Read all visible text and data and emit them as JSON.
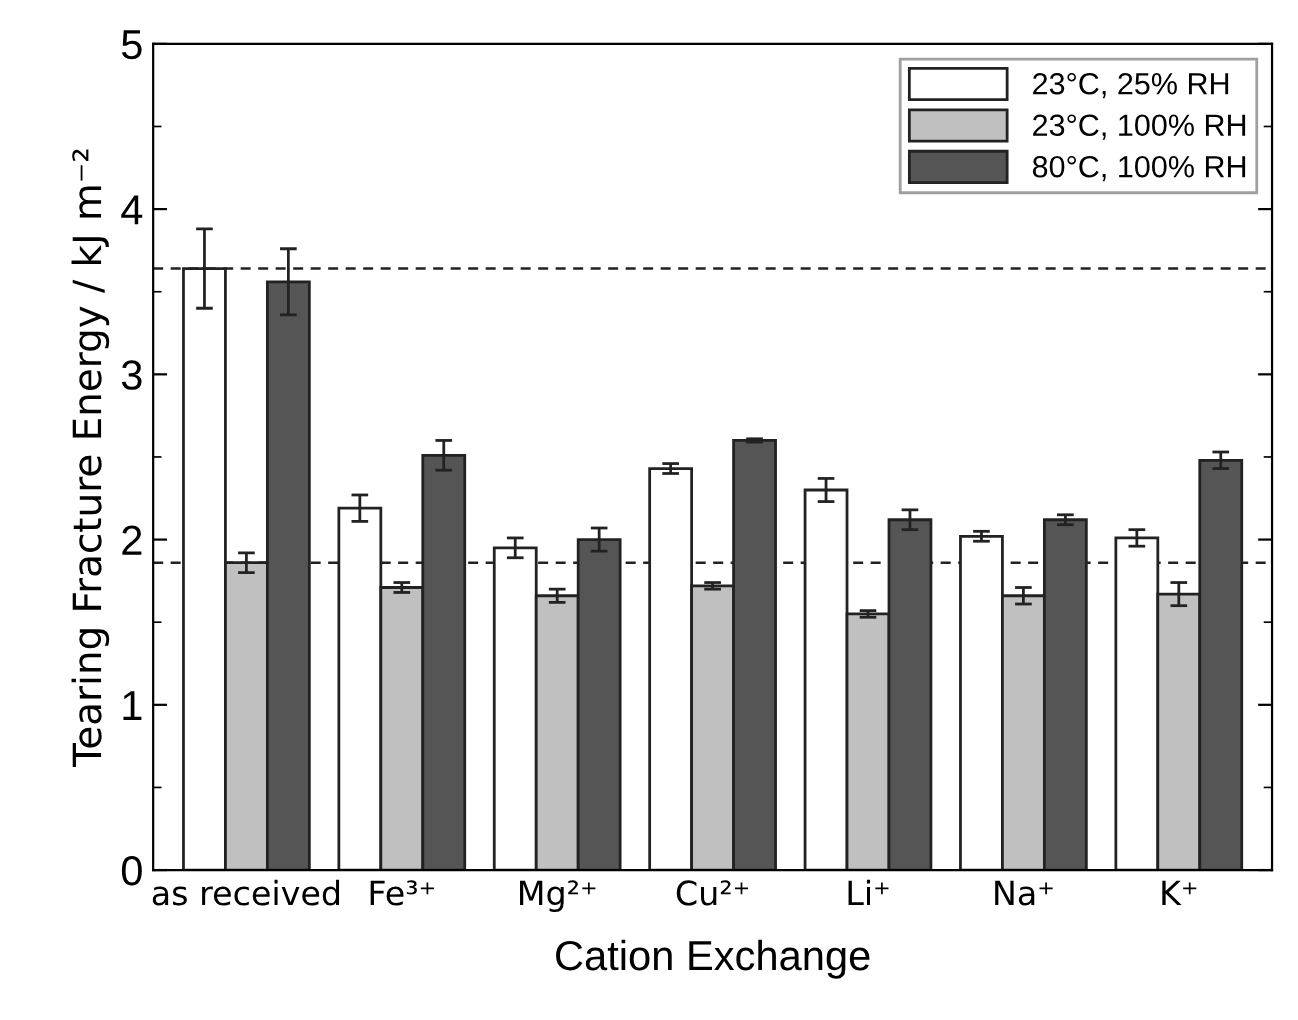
{
  "chart_data": {
    "type": "bar",
    "xlabel": "Cation Exchange",
    "ylabel": "Tearing Fracture Energy / kJ m⁻²",
    "categories": [
      "as received",
      "Fe³⁺",
      "Mg²⁺",
      "Cu²⁺",
      "Li⁺",
      "Na⁺",
      "K⁺"
    ],
    "series": [
      {
        "name": "23°C, 25% RH",
        "color": "#ffffff",
        "values": [
          3.64,
          2.19,
          1.95,
          2.43,
          2.3,
          2.02,
          2.01
        ],
        "errors": [
          0.24,
          0.08,
          0.06,
          0.03,
          0.07,
          0.03,
          0.05
        ]
      },
      {
        "name": "23°C, 100% RH",
        "color": "#c0c0c0",
        "values": [
          1.86,
          1.71,
          1.66,
          1.72,
          1.55,
          1.66,
          1.67
        ],
        "errors": [
          0.06,
          0.03,
          0.04,
          0.02,
          0.02,
          0.05,
          0.07
        ]
      },
      {
        "name": "80°C, 100% RH",
        "color": "#555555",
        "values": [
          3.56,
          2.51,
          2.0,
          2.6,
          2.12,
          2.12,
          2.48
        ],
        "errors": [
          0.2,
          0.09,
          0.07,
          0.01,
          0.06,
          0.03,
          0.05
        ]
      }
    ],
    "ylim": [
      0,
      5
    ],
    "yticks": [
      0,
      1,
      2,
      3,
      4,
      5
    ],
    "ref_lines": [
      {
        "axis": "y",
        "value": 3.64,
        "line_style": "dashed"
      },
      {
        "axis": "y",
        "value": 1.86,
        "line_style": "dashed"
      }
    ],
    "grid": false,
    "legend": "top right"
  }
}
